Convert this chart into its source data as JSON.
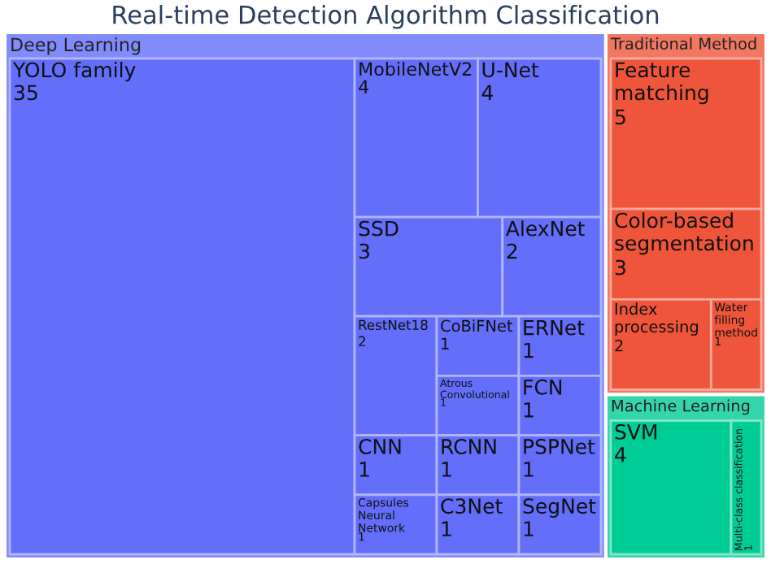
{
  "chart_data": {
    "type": "other",
    "title": "Real-time Detection Algorithm Classification",
    "data_labels": true,
    "categories": [
      "YOLO family",
      "MobileNetV2",
      "U-Net",
      "SSD",
      "AlexNet",
      "RestNet18",
      "CNN",
      "Capsules Neural Network",
      "CoBiFNet",
      "ERNet",
      "Atrous Convolutional",
      "FCN",
      "RCNN",
      "C3Net",
      "PSPNet",
      "SegNet",
      "Feature matching",
      "Color-based segmentation",
      "Index processing",
      "Water filling method",
      "SVM",
      "Multi-class classification"
    ],
    "series": [
      {
        "name": "Deep Learning",
        "color": "#636efa",
        "values": [
          35,
          4,
          4,
          3,
          2,
          2,
          1,
          1,
          1,
          1,
          1,
          1,
          1,
          1,
          1,
          1,
          null,
          null,
          null,
          null,
          null,
          null
        ]
      },
      {
        "name": "Traditional Method",
        "color": "#ef553b",
        "values": [
          null,
          null,
          null,
          null,
          null,
          null,
          null,
          null,
          null,
          null,
          null,
          null,
          null,
          null,
          null,
          null,
          5,
          3,
          2,
          1,
          null,
          null
        ]
      },
      {
        "name": "Machine Learning",
        "color": "#00cc96",
        "values": [
          null,
          null,
          null,
          null,
          null,
          null,
          null,
          null,
          null,
          null,
          null,
          null,
          null,
          null,
          null,
          null,
          null,
          null,
          null,
          null,
          4,
          1
        ]
      }
    ]
  }
}
